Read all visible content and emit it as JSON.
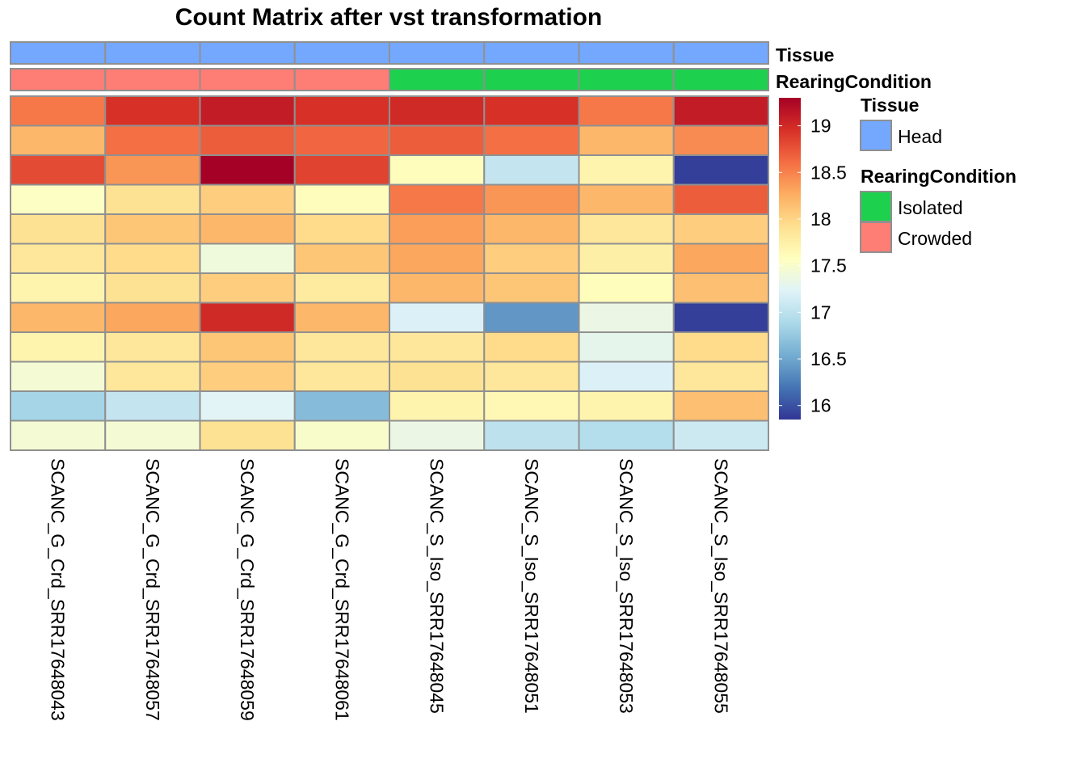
{
  "chart_data": {
    "type": "heatmap",
    "title": "Count Matrix after vst transformation",
    "columns": [
      "SCANC_G_Crd_SRR17648043",
      "SCANC_G_Crd_SRR17648057",
      "SCANC_G_Crd_SRR17648059",
      "SCANC_G_Crd_SRR17648061",
      "SCANC_S_Iso_SRR17648045",
      "SCANC_S_Iso_SRR17648051",
      "SCANC_S_Iso_SRR17648053",
      "SCANC_S_Iso_SRR17648055"
    ],
    "values": [
      [
        18.55,
        18.95,
        19.1,
        18.95,
        19.0,
        18.95,
        18.55,
        19.1
      ],
      [
        18.2,
        18.6,
        18.7,
        18.65,
        18.7,
        18.6,
        18.2,
        18.45
      ],
      [
        18.8,
        18.4,
        19.3,
        18.85,
        17.6,
        17.05,
        17.7,
        15.9
      ],
      [
        17.55,
        17.9,
        18.05,
        17.6,
        18.55,
        18.4,
        18.2,
        18.7
      ],
      [
        17.9,
        18.1,
        18.2,
        17.95,
        18.35,
        18.2,
        17.85,
        18.05
      ],
      [
        17.85,
        17.95,
        17.4,
        18.1,
        18.3,
        18.05,
        17.75,
        18.3
      ],
      [
        17.7,
        17.9,
        18.05,
        17.8,
        18.2,
        18.1,
        17.6,
        18.15
      ],
      [
        18.2,
        18.3,
        19.0,
        18.2,
        17.2,
        16.4,
        17.35,
        15.9
      ],
      [
        17.7,
        17.85,
        18.1,
        17.85,
        17.85,
        17.95,
        17.3,
        17.95
      ],
      [
        17.45,
        17.85,
        18.05,
        17.85,
        17.9,
        17.85,
        17.2,
        17.85
      ],
      [
        16.85,
        17.05,
        17.25,
        16.65,
        17.7,
        17.65,
        17.7,
        18.15
      ],
      [
        17.45,
        17.45,
        17.9,
        17.5,
        17.35,
        17.0,
        16.95,
        17.1
      ]
    ],
    "annotations": [
      {
        "name": "Tissue",
        "values": [
          "Head",
          "Head",
          "Head",
          "Head",
          "Head",
          "Head",
          "Head",
          "Head"
        ]
      },
      {
        "name": "RearingCondition",
        "values": [
          "Crowded",
          "Crowded",
          "Crowded",
          "Crowded",
          "Isolated",
          "Isolated",
          "Isolated",
          "Isolated"
        ]
      }
    ],
    "legend": {
      "color_scale": {
        "range": [
          15.85,
          19.3
        ],
        "ticks": [
          16,
          16.5,
          17,
          17.5,
          18,
          18.5,
          19
        ],
        "tick_labels": [
          "16",
          "16.5",
          "17",
          "17.5",
          "18",
          "18.5",
          "19"
        ],
        "stops": [
          "#313695",
          "#4575B4",
          "#74ADD1",
          "#ABD9E9",
          "#E0F3F8",
          "#FFFFBF",
          "#FEE090",
          "#FDAE61",
          "#F46D43",
          "#D73027",
          "#A50026"
        ]
      },
      "groups": [
        {
          "title": "Tissue",
          "items": [
            {
              "label": "Head",
              "color": "#74A7FE"
            }
          ]
        },
        {
          "title": "RearingCondition",
          "items": [
            {
              "label": "Isolated",
              "color": "#1DD04E"
            },
            {
              "label": "Crowded",
              "color": "#FE7D75"
            }
          ]
        }
      ],
      "placement": "right"
    },
    "cell_border_color": "#909090"
  }
}
